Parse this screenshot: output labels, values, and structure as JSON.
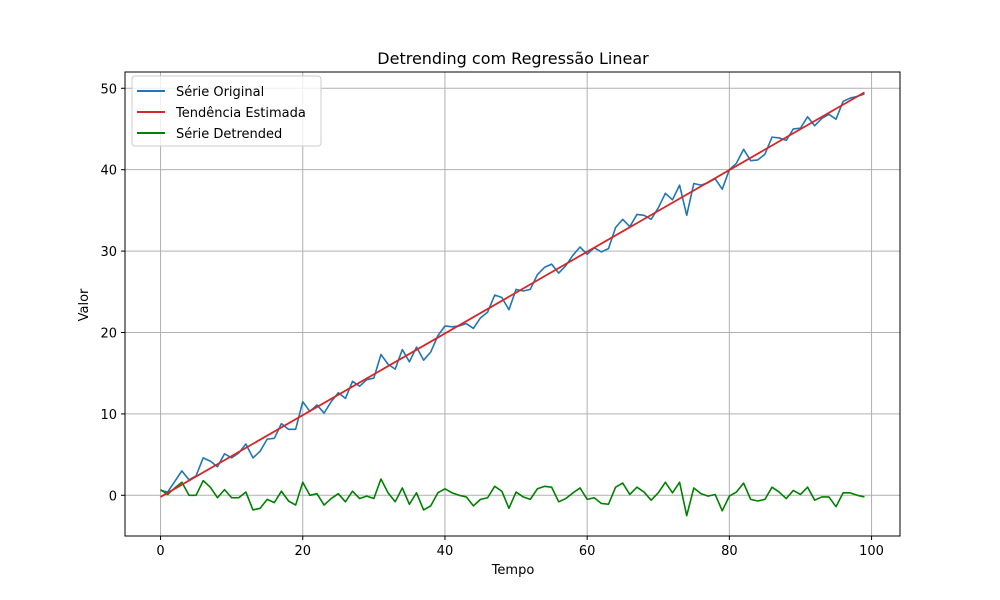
{
  "chart_data": {
    "type": "line",
    "title": "Detrending com Regressão Linear",
    "xlabel": "Tempo",
    "ylabel": "Valor",
    "xlim": [
      -5,
      104
    ],
    "ylim": [
      -5,
      52
    ],
    "xticks": [
      0,
      20,
      40,
      60,
      80,
      100
    ],
    "yticks": [
      0,
      10,
      20,
      30,
      40,
      50
    ],
    "grid": true,
    "legend_position": "top-left",
    "colors": {
      "original": "#1f77b4",
      "trend": "#d62728",
      "detrended": "#008000",
      "grid": "#b0b0b0"
    },
    "series": [
      {
        "name": "Série Original",
        "key": "original",
        "values": [
          0.6,
          0.4,
          1.7,
          3.0,
          1.9,
          2.4,
          4.6,
          4.2,
          3.5,
          5.1,
          4.6,
          5.2,
          6.3,
          4.6,
          5.4,
          6.9,
          7.0,
          8.8,
          8.1,
          8.1,
          11.5,
          10.3,
          11.1,
          10.1,
          11.5,
          12.6,
          11.9,
          14.0,
          13.4,
          14.2,
          14.4,
          17.3,
          16.1,
          15.5,
          17.9,
          16.4,
          18.2,
          16.6,
          17.6,
          19.6,
          20.8,
          20.7,
          20.8,
          21.1,
          20.5,
          21.8,
          22.5,
          24.6,
          24.3,
          22.8,
          25.3,
          25.1,
          25.3,
          27.1,
          28.0,
          28.4,
          27.3,
          28.2,
          29.5,
          30.5,
          29.6,
          30.4,
          29.9,
          30.3,
          32.9,
          33.9,
          33.0,
          34.5,
          34.4,
          33.9,
          35.3,
          37.1,
          36.3,
          38.1,
          34.4,
          38.3,
          38.1,
          38.4,
          38.9,
          37.6,
          40.0,
          40.8,
          42.5,
          41.1,
          41.2,
          41.9,
          44.0,
          43.9,
          43.6,
          45.0,
          45.1,
          46.5,
          45.4,
          46.3,
          46.8,
          46.2,
          48.4,
          48.8,
          49.0,
          49.3
        ],
        "style": "solid"
      },
      {
        "name": "Tendência Estimada",
        "key": "trend",
        "x": [
          0,
          99
        ],
        "values": [
          -0.2,
          49.5
        ],
        "style": "solid"
      },
      {
        "name": "Série Detrended",
        "key": "detrended",
        "values": [
          0.7,
          0.1,
          0.9,
          1.6,
          0.0,
          0.0,
          1.8,
          1.0,
          -0.3,
          0.7,
          -0.3,
          -0.3,
          0.4,
          -1.8,
          -1.6,
          -0.5,
          -0.9,
          0.5,
          -0.7,
          -1.2,
          1.6,
          0.0,
          0.2,
          -1.2,
          -0.4,
          0.2,
          -0.8,
          0.5,
          -0.4,
          -0.1,
          -0.4,
          2.0,
          0.3,
          -0.8,
          0.9,
          -1.1,
          0.3,
          -1.8,
          -1.3,
          0.3,
          0.8,
          0.3,
          0.0,
          -0.2,
          -1.3,
          -0.5,
          -0.3,
          1.1,
          0.5,
          -1.6,
          0.4,
          -0.2,
          -0.5,
          0.8,
          1.1,
          1.0,
          -0.8,
          -0.4,
          0.3,
          0.9,
          -0.5,
          -0.3,
          -1.0,
          -1.1,
          1.0,
          1.5,
          0.1,
          1.0,
          0.4,
          -0.6,
          0.3,
          1.6,
          0.3,
          1.6,
          -2.5,
          0.9,
          0.2,
          -0.1,
          0.1,
          -1.9,
          -0.1,
          0.4,
          1.5,
          -0.5,
          -0.7,
          -0.5,
          1.0,
          0.4,
          -0.4,
          0.6,
          0.1,
          1.0,
          -0.6,
          -0.2,
          -0.2,
          -1.4,
          0.3,
          0.3,
          0.0,
          -0.2
        ],
        "style": "solid"
      }
    ]
  }
}
